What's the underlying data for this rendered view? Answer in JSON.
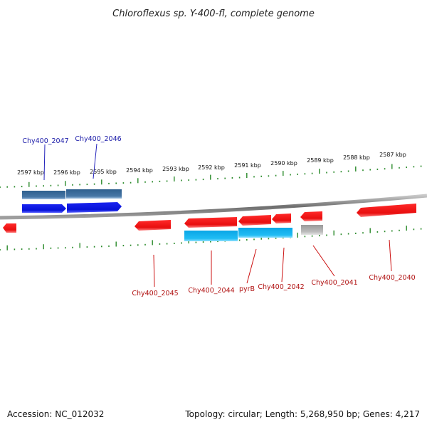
{
  "title": "Chloroflexus sp. Y-400-fl, complete genome",
  "ruler": {
    "labels": [
      "2597 kbp",
      "2596 kbp",
      "2595 kbp",
      "2594 kbp",
      "2593 kbp",
      "2592 kbp",
      "2591 kbp",
      "2590 kbp",
      "2589 kbp",
      "2588 kbp",
      "2587 kbp"
    ]
  },
  "gene_labels_top": [
    "Chy400_2047",
    "Chy400_2046"
  ],
  "gene_labels_bottom": [
    "Chy400_2045",
    "Chy400_2044",
    "pyrB",
    "Chy400_2042",
    "Chy400_2041",
    "Chy400_2040"
  ],
  "footer": {
    "accession": "Accession: NC_012032",
    "summary": "Topology: circular; Length: 5,268,950 bp; Genes: 4,217"
  },
  "colors": {
    "forward_cds": "#0a16e0",
    "forward_feature": "#3d6e9c",
    "reverse_cds": "#ee1111",
    "reverse_feature": "#18b4ee",
    "pseudo_feature": "#b4b4b4",
    "backbone": "#7a7a7a",
    "tick": "#2a8a2a"
  }
}
